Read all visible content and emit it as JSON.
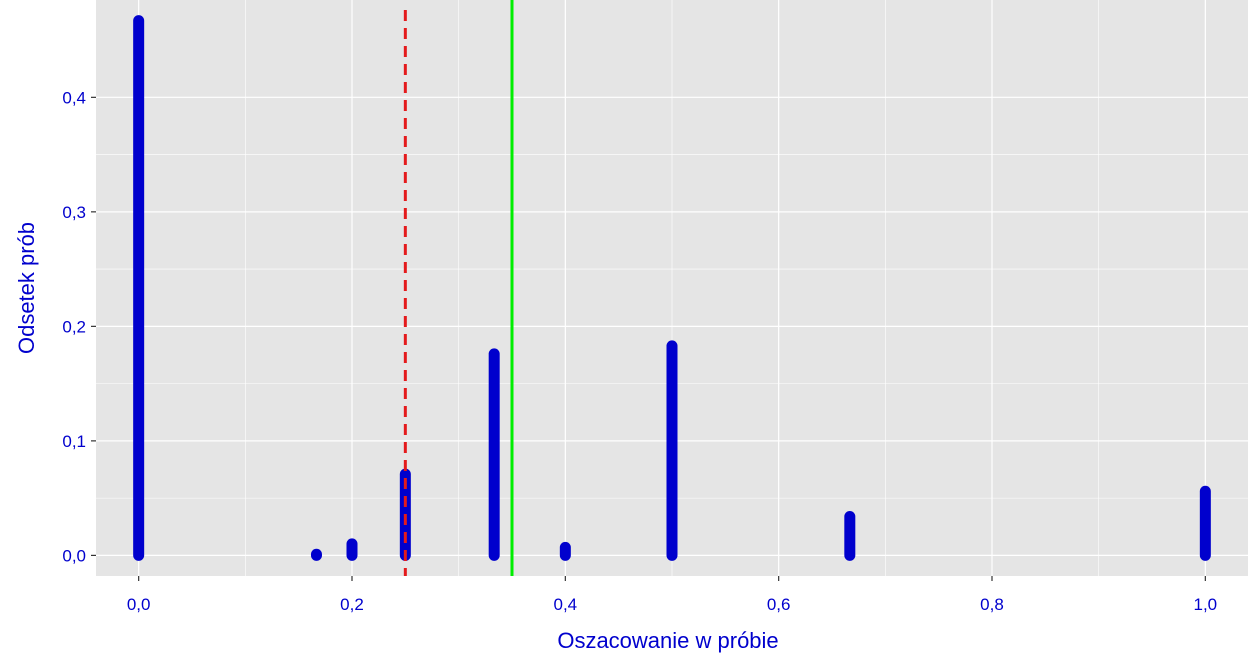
{
  "chart_data": {
    "type": "bar",
    "xlabel": "Oszacowanie w próbie",
    "ylabel": "Odsetek prób",
    "xlim": [
      -0.04,
      1.04
    ],
    "ylim": [
      -0.018,
      0.485
    ],
    "x_ticks": [
      0.0,
      0.2,
      0.4,
      0.6,
      0.8,
      1.0
    ],
    "x_tick_labels": [
      "0,0",
      "0,2",
      "0,4",
      "0,6",
      "0,8",
      "1,0"
    ],
    "y_ticks": [
      0.0,
      0.1,
      0.2,
      0.3,
      0.4
    ],
    "y_tick_labels": [
      "0,0",
      "0,1",
      "0,2",
      "0,3",
      "0,4"
    ],
    "grid": true,
    "series": [
      {
        "x": [
          0.0,
          0.1667,
          0.2,
          0.25,
          0.3333,
          0.4,
          0.5,
          0.6667,
          1.0
        ],
        "values": [
          0.467,
          0.001,
          0.01,
          0.071,
          0.176,
          0.007,
          0.183,
          0.034,
          0.056
        ],
        "color": "#0000cd"
      }
    ],
    "reference_lines": [
      {
        "x": 0.25,
        "style": "dashed",
        "color": "#e41a1c"
      },
      {
        "x": 0.35,
        "style": "solid",
        "color": "#00ee00"
      }
    ],
    "colors": {
      "panel": "#e5e5e5",
      "grid": "#ffffff",
      "text": "#0000cd"
    }
  }
}
